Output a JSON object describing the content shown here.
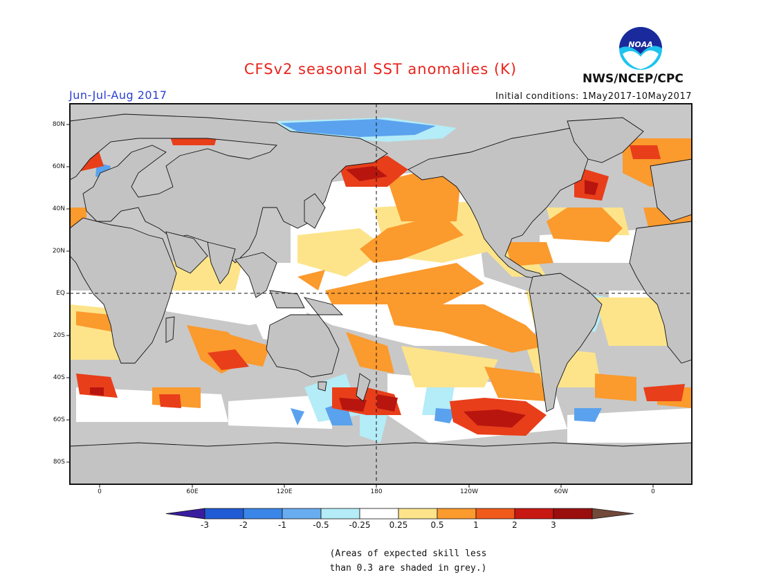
{
  "title": "CFSv2 seasonal SST anomalies (K)",
  "season": "Jun-Jul-Aug 2017",
  "initial_conditions": "Initial conditions: 1May2017-10May2017",
  "agency": "NWS/NCEP/CPC",
  "logo_text": "NOAA",
  "map": {
    "lat_labels": [
      "80N",
      "60N",
      "40N",
      "20N",
      "EQ",
      "20S",
      "40S",
      "60S",
      "80S"
    ],
    "lon_labels": [
      "0",
      "60E",
      "120E",
      "180",
      "120W",
      "60W",
      "0"
    ],
    "land_color": "#c3c3c3",
    "grey_skill_mask_color": "#c8c8c8"
  },
  "colorbar": {
    "ticks": [
      "-3",
      "-2",
      "-1",
      "-0.5",
      "-0.25",
      "0.25",
      "0.5",
      "1",
      "2",
      "3"
    ],
    "colors": [
      "#3a1d9e",
      "#1f5bd4",
      "#3a86e8",
      "#68adf0",
      "#b4ecf7",
      "#ffffff",
      "#fde48a",
      "#fb9a2d",
      "#f05a1a",
      "#c81812",
      "#9b0e0e",
      "#73493a"
    ]
  },
  "note_line1": "(Areas of expected skill less",
  "note_line2": "than 0.3 are shaded in grey.)"
}
